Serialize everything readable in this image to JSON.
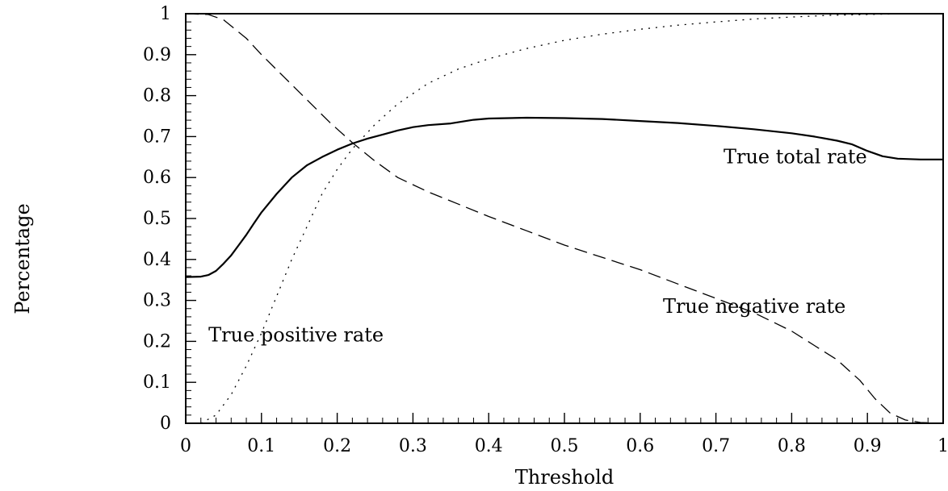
{
  "chart_data": {
    "type": "line",
    "xlabel": "Threshold",
    "ylabel": "Percentage",
    "xlim": [
      0,
      1
    ],
    "ylim": [
      0,
      1
    ],
    "x_ticks": [
      "0",
      "0.1",
      "0.2",
      "0.3",
      "0.4",
      "0.5",
      "0.6",
      "0.7",
      "0.8",
      "0.9",
      "1"
    ],
    "y_ticks": [
      "0",
      "0.1",
      "0.2",
      "0.3",
      "0.4",
      "0.5",
      "0.6",
      "0.7",
      "0.8",
      "0.9",
      "1"
    ],
    "grid": false,
    "series": [
      {
        "name": "True total rate",
        "style": "solid",
        "points": [
          [
            0,
            0.357
          ],
          [
            0.02,
            0.358
          ],
          [
            0.03,
            0.362
          ],
          [
            0.04,
            0.372
          ],
          [
            0.05,
            0.39
          ],
          [
            0.06,
            0.41
          ],
          [
            0.07,
            0.435
          ],
          [
            0.08,
            0.46
          ],
          [
            0.09,
            0.488
          ],
          [
            0.1,
            0.515
          ],
          [
            0.12,
            0.56
          ],
          [
            0.14,
            0.6
          ],
          [
            0.16,
            0.63
          ],
          [
            0.18,
            0.65
          ],
          [
            0.2,
            0.668
          ],
          [
            0.22,
            0.683
          ],
          [
            0.24,
            0.695
          ],
          [
            0.26,
            0.705
          ],
          [
            0.28,
            0.715
          ],
          [
            0.3,
            0.723
          ],
          [
            0.32,
            0.728
          ],
          [
            0.35,
            0.732
          ],
          [
            0.38,
            0.741
          ],
          [
            0.4,
            0.744
          ],
          [
            0.45,
            0.746
          ],
          [
            0.5,
            0.745
          ],
          [
            0.55,
            0.743
          ],
          [
            0.6,
            0.738
          ],
          [
            0.65,
            0.733
          ],
          [
            0.7,
            0.726
          ],
          [
            0.75,
            0.718
          ],
          [
            0.8,
            0.708
          ],
          [
            0.83,
            0.7
          ],
          [
            0.86,
            0.69
          ],
          [
            0.88,
            0.681
          ],
          [
            0.9,
            0.665
          ],
          [
            0.92,
            0.652
          ],
          [
            0.94,
            0.646
          ],
          [
            0.97,
            0.644
          ],
          [
            1.0,
            0.644
          ]
        ]
      },
      {
        "name": "True negative rate",
        "style": "dashed",
        "points": [
          [
            0,
            1.0
          ],
          [
            0.03,
            0.998
          ],
          [
            0.05,
            0.985
          ],
          [
            0.08,
            0.94
          ],
          [
            0.1,
            0.9
          ],
          [
            0.13,
            0.845
          ],
          [
            0.16,
            0.79
          ],
          [
            0.19,
            0.735
          ],
          [
            0.22,
            0.685
          ],
          [
            0.25,
            0.64
          ],
          [
            0.28,
            0.6
          ],
          [
            0.32,
            0.565
          ],
          [
            0.36,
            0.535
          ],
          [
            0.4,
            0.505
          ],
          [
            0.45,
            0.47
          ],
          [
            0.5,
            0.435
          ],
          [
            0.55,
            0.405
          ],
          [
            0.6,
            0.375
          ],
          [
            0.65,
            0.34
          ],
          [
            0.7,
            0.305
          ],
          [
            0.75,
            0.27
          ],
          [
            0.8,
            0.225
          ],
          [
            0.83,
            0.19
          ],
          [
            0.86,
            0.155
          ],
          [
            0.89,
            0.105
          ],
          [
            0.91,
            0.06
          ],
          [
            0.93,
            0.025
          ],
          [
            0.95,
            0.008
          ],
          [
            0.97,
            0.002
          ],
          [
            1.0,
            0.0
          ]
        ]
      },
      {
        "name": "True positive rate",
        "style": "dotted",
        "points": [
          [
            0.02,
            0.0
          ],
          [
            0.04,
            0.02
          ],
          [
            0.06,
            0.07
          ],
          [
            0.08,
            0.14
          ],
          [
            0.1,
            0.22
          ],
          [
            0.12,
            0.31
          ],
          [
            0.14,
            0.4
          ],
          [
            0.16,
            0.48
          ],
          [
            0.18,
            0.56
          ],
          [
            0.2,
            0.62
          ],
          [
            0.22,
            0.67
          ],
          [
            0.25,
            0.73
          ],
          [
            0.28,
            0.78
          ],
          [
            0.32,
            0.83
          ],
          [
            0.36,
            0.865
          ],
          [
            0.4,
            0.89
          ],
          [
            0.45,
            0.915
          ],
          [
            0.5,
            0.935
          ],
          [
            0.55,
            0.95
          ],
          [
            0.6,
            0.962
          ],
          [
            0.65,
            0.972
          ],
          [
            0.7,
            0.98
          ],
          [
            0.75,
            0.987
          ],
          [
            0.8,
            0.992
          ],
          [
            0.85,
            0.996
          ],
          [
            0.9,
            0.998
          ],
          [
            0.95,
            1.0
          ],
          [
            1.0,
            1.0
          ]
        ]
      }
    ],
    "annotations": [
      {
        "text": "True total rate",
        "x": 0.71,
        "y": 0.635
      },
      {
        "text": "True negative rate",
        "x": 0.63,
        "y": 0.27
      },
      {
        "text": "True positive rate",
        "x": 0.03,
        "y": 0.2
      }
    ]
  }
}
